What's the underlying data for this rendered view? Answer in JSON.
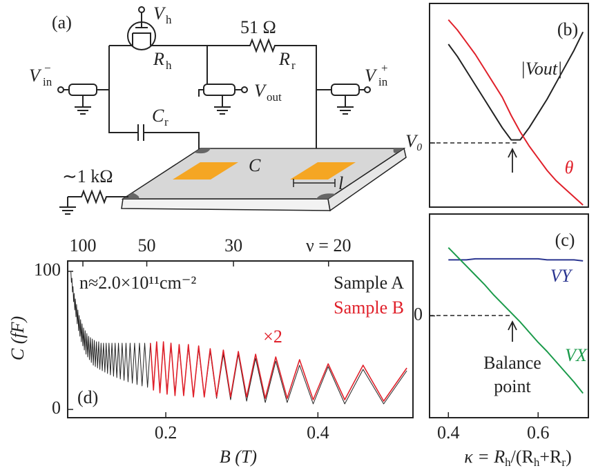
{
  "diagram": {
    "panel_label": "(a)",
    "vh": {
      "base": "V",
      "sub": "h"
    },
    "rh": {
      "base": "R",
      "sub": "h"
    },
    "resistor_value": "51 Ω",
    "rr": {
      "base": "R",
      "sub": "r"
    },
    "vin_minus": {
      "base": "V",
      "sub": "in",
      "sup": "−"
    },
    "vout": {
      "base": "V",
      "sub": "out"
    },
    "vin_plus": {
      "base": "V",
      "sub": "in",
      "sup": "+"
    },
    "cr": {
      "base": "C",
      "sub": "r"
    },
    "sample": "C",
    "ground_resistor": "∼1 kΩ",
    "length": "l"
  },
  "chart_data": [
    {
      "type": "line",
      "panel_label": "(b)",
      "x": [
        0.4,
        0.42,
        0.44,
        0.46,
        0.48,
        0.5,
        0.52,
        0.54,
        0.56,
        0.58,
        0.6,
        0.62,
        0.64,
        0.66,
        0.68,
        0.7
      ],
      "series": [
        {
          "name": "|Vout|",
          "color": "#222222",
          "values": [
            0.8,
            0.74,
            0.67,
            0.6,
            0.53,
            0.46,
            0.39,
            0.33,
            0.33,
            0.39,
            0.46,
            0.53,
            0.61,
            0.69,
            0.77,
            0.86
          ]
        },
        {
          "name": "θ",
          "color": "#e0202a",
          "values": [
            0.92,
            0.87,
            0.81,
            0.75,
            0.68,
            0.61,
            0.54,
            0.45,
            0.37,
            0.3,
            0.24,
            0.18,
            0.13,
            0.09,
            0.05,
            0.01
          ]
        }
      ],
      "xlim": [
        0.358,
        0.712
      ],
      "ylim": [
        0,
        1
      ],
      "yticks": [
        {
          "value": 0.315,
          "label": "V₀"
        }
      ]
    },
    {
      "type": "line",
      "panel_label": "(c)",
      "x": [
        0.4,
        0.42,
        0.44,
        0.46,
        0.48,
        0.5,
        0.52,
        0.54,
        0.56,
        0.58,
        0.6,
        0.62,
        0.64,
        0.66,
        0.68,
        0.7
      ],
      "series": [
        {
          "name": "VY",
          "color": "#2a3590",
          "values": [
            0.55,
            0.55,
            0.55,
            0.56,
            0.56,
            0.56,
            0.56,
            0.56,
            0.56,
            0.56,
            0.56,
            0.55,
            0.55,
            0.55,
            0.55,
            0.54
          ]
        },
        {
          "name": "VX",
          "color": "#1a9a4a",
          "values": [
            0.67,
            0.58,
            0.49,
            0.4,
            0.31,
            0.21,
            0.12,
            0.03,
            -0.06,
            -0.16,
            -0.26,
            -0.35,
            -0.45,
            -0.55,
            -0.65,
            -0.76
          ]
        }
      ],
      "annotations": [
        "Balance",
        "point"
      ],
      "xlabel": [
        "κ = R",
        "h",
        "/(R",
        "h",
        "+R",
        "r",
        ")"
      ],
      "xlim": [
        0.358,
        0.712
      ],
      "ylim": [
        -1,
        1
      ],
      "xticks": [
        0.4,
        0.6
      ],
      "yticks": [
        0
      ]
    },
    {
      "type": "line",
      "panel_label": "(d)",
      "xlabel": "B (T)",
      "ylabel": "C (fF)",
      "annotations": [
        "n≈2.0×10¹¹cm⁻²",
        "×2"
      ],
      "x": [
        0.0752,
        0.0759,
        0.0766,
        0.0773,
        0.078,
        0.0788,
        0.0795,
        0.0803,
        0.0811,
        0.0819,
        0.0827,
        0.0835,
        0.0844,
        0.0853,
        0.0861,
        0.0871,
        0.088,
        0.0889,
        0.0899,
        0.0909,
        0.0919,
        0.0929,
        0.094,
        0.0951,
        0.0962,
        0.0973,
        0.0985,
        0.0996,
        0.1009,
        0.1021,
        0.1034,
        0.1047,
        0.106,
        0.1074,
        0.1088,
        0.1103,
        0.1118,
        0.1133,
        0.1149,
        0.1165,
        0.1181,
        0.1199,
        0.1216,
        0.1234,
        0.1253,
        0.1272,
        0.1292,
        0.1313,
        0.1334,
        0.1356,
        0.1378,
        0.1402,
        0.1426,
        0.1451,
        0.1477,
        0.1504,
        0.1531,
        0.156,
        0.159,
        0.1622,
        0.1654,
        0.1688,
        0.1723,
        0.176,
        0.1798,
        0.1838,
        0.188,
        0.1923,
        0.1969,
        0.2017,
        0.2068,
        0.2121,
        0.2176,
        0.2235,
        0.2297,
        0.2363,
        0.2432,
        0.2506,
        0.2584,
        0.2668,
        0.2757,
        0.2852,
        0.2954,
        0.3063,
        0.3181,
        0.3308,
        0.3446,
        0.3596,
        0.3759,
        0.3938,
        0.4135,
        0.4353,
        0.4594,
        0.4865,
        0.5169
      ],
      "series": [
        {
          "name": "Sample A",
          "color": "#222222",
          "values": [
            100,
            92,
            95,
            85,
            89,
            78,
            84,
            72,
            80,
            67,
            76,
            62,
            72,
            57,
            68,
            53,
            65,
            49,
            62,
            46,
            59,
            43,
            57,
            40,
            55,
            38,
            53,
            36,
            52,
            34,
            51,
            32,
            50,
            31,
            49,
            30,
            49,
            29,
            48,
            28,
            48,
            27,
            48,
            26,
            48,
            25,
            48,
            24,
            48,
            23,
            48,
            22,
            48,
            21,
            48,
            20,
            48,
            19,
            48,
            18,
            48,
            17,
            48,
            16,
            48,
            15,
            48,
            14,
            47,
            13,
            46,
            12,
            45,
            11,
            45,
            10,
            44,
            9,
            42,
            8,
            40,
            7,
            40,
            6,
            37,
            5,
            35,
            5,
            32,
            4,
            31,
            4,
            29,
            4,
            28
          ]
        },
        {
          "name": "Sample B",
          "color": "#e0202a",
          "values": [
            null,
            null,
            null,
            null,
            null,
            null,
            null,
            null,
            null,
            null,
            null,
            null,
            null,
            null,
            null,
            null,
            null,
            null,
            null,
            null,
            null,
            null,
            null,
            null,
            null,
            null,
            null,
            null,
            null,
            null,
            null,
            null,
            null,
            null,
            null,
            null,
            null,
            null,
            null,
            null,
            null,
            null,
            null,
            null,
            null,
            null,
            null,
            null,
            null,
            null,
            null,
            null,
            null,
            null,
            null,
            null,
            null,
            null,
            null,
            null,
            null,
            null,
            null,
            null,
            48,
            14,
            49,
            12,
            49,
            11,
            48,
            10,
            47,
            10,
            47,
            9,
            46,
            9,
            44,
            9,
            43,
            9,
            42,
            9,
            40,
            8,
            38,
            8,
            36,
            7,
            33,
            7,
            32,
            6,
            30
          ]
        }
      ],
      "xlim": [
        0.071,
        0.525
      ],
      "ylim": [
        -6,
        107.5
      ],
      "xticks": [
        0.2,
        0.4
      ],
      "yticks": [
        0,
        100
      ],
      "x2ticks": [
        {
          "value": 0.091,
          "label": "100"
        },
        {
          "value": 0.175,
          "label": "50"
        },
        {
          "value": 0.289,
          "label": "30"
        },
        {
          "value": 0.414,
          "label": "ν = 20"
        }
      ]
    }
  ]
}
